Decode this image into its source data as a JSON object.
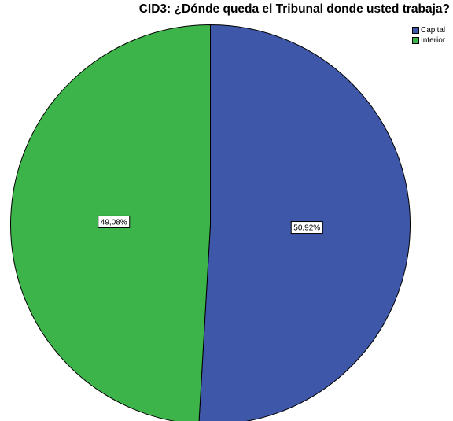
{
  "chart_data": {
    "type": "pie",
    "title": "CID3: ¿Dónde queda el Tribunal donde usted trabaja?",
    "slices": [
      {
        "label": "Capital",
        "value": 50.92,
        "value_label": "50,92%",
        "color": "#3f57a8"
      },
      {
        "label": "Interior",
        "value": 49.08,
        "value_label": "49,08%",
        "color": "#3cb44a"
      }
    ],
    "legend_placement": "top-right",
    "start_angle_deg": 0,
    "direction": "clockwise"
  }
}
